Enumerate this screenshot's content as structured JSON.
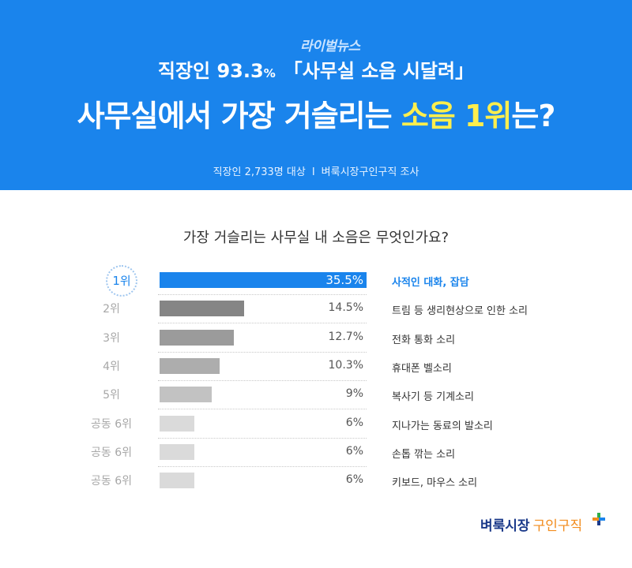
{
  "header": {
    "brand": "라이벌뉴스",
    "subtitle_pre": "직장인 93.3",
    "subtitle_pct": "%",
    "subtitle_quote": "「사무실 소음 시달려」",
    "title_pre": "사무실에서 가장 거슬리는 ",
    "title_highlight": "소음 1위",
    "title_post": "는?",
    "survey_left": "직장인 2,733명 대상",
    "survey_sep": "I",
    "survey_right": "벼룩시장구인구직 조사",
    "bg_color": "#1a84ec",
    "highlight_color": "#ffee4d"
  },
  "chart_data": {
    "type": "bar",
    "orientation": "horizontal",
    "title": "가장 거슬리는 사무실 내 소음은 무엇인가요?",
    "xlim": [
      0,
      35.5
    ],
    "items": [
      {
        "rank": "1위",
        "category": "사적인 대화, 잡담",
        "value": 35.5,
        "value_label": "35.5%",
        "color": "#1a84ec"
      },
      {
        "rank": "2위",
        "category": "트림 등 생리현상으로 인한 소리",
        "value": 14.5,
        "value_label": "14.5%",
        "color": "#858585"
      },
      {
        "rank": "3위",
        "category": "전화 통화 소리",
        "value": 12.7,
        "value_label": "12.7%",
        "color": "#9b9b9b"
      },
      {
        "rank": "4위",
        "category": "휴대폰 벨소리",
        "value": 10.3,
        "value_label": "10.3%",
        "color": "#adadad"
      },
      {
        "rank": "5위",
        "category": "복사기 등 기계소리",
        "value": 9,
        "value_label": "9%",
        "color": "#c2c2c2"
      },
      {
        "rank": "공동 6위",
        "category": "지나가는 동료의 발소리",
        "value": 6,
        "value_label": "6%",
        "color": "#dadada"
      },
      {
        "rank": "공동 6위",
        "category": "손톱 깎는 소리",
        "value": 6,
        "value_label": "6%",
        "color": "#dadada"
      },
      {
        "rank": "공동 6위",
        "category": "키보드, 마우스 소리",
        "value": 6,
        "value_label": "6%",
        "color": "#dadada"
      }
    ]
  },
  "footer": {
    "logo_main": "벼룩시장",
    "logo_sub": "구인구직",
    "plus_icon": "plus-icon"
  }
}
